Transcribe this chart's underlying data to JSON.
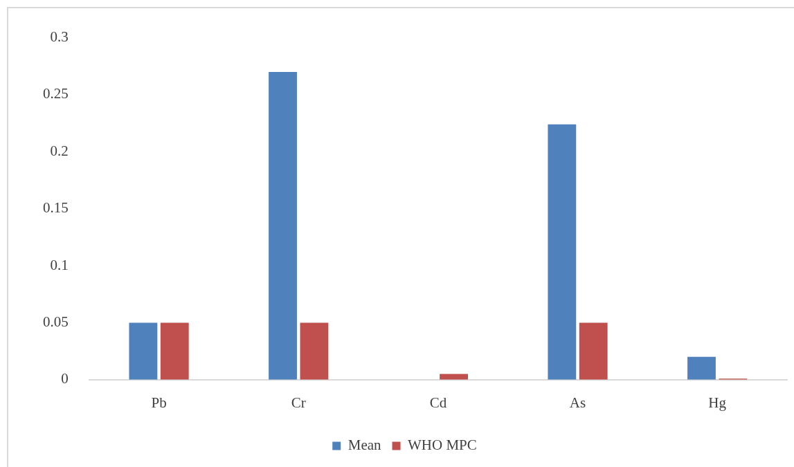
{
  "chart_data": {
    "type": "bar",
    "categories": [
      "Pb",
      "Cr",
      "Cd",
      "As",
      "Hg"
    ],
    "series": [
      {
        "name": "Mean",
        "color": "#4f81bd",
        "values": [
          0.05,
          0.27,
          0,
          0.224,
          0.02
        ]
      },
      {
        "name": "WHO MPC",
        "color": "#c0504d",
        "values": [
          0.05,
          0.05,
          0.005,
          0.05,
          0.001
        ]
      }
    ],
    "ylim": [
      0,
      0.3
    ],
    "yticks": [
      0,
      0.05,
      0.1,
      0.15,
      0.2,
      0.25,
      0.3
    ],
    "grid": false,
    "legend": "bottom"
  }
}
